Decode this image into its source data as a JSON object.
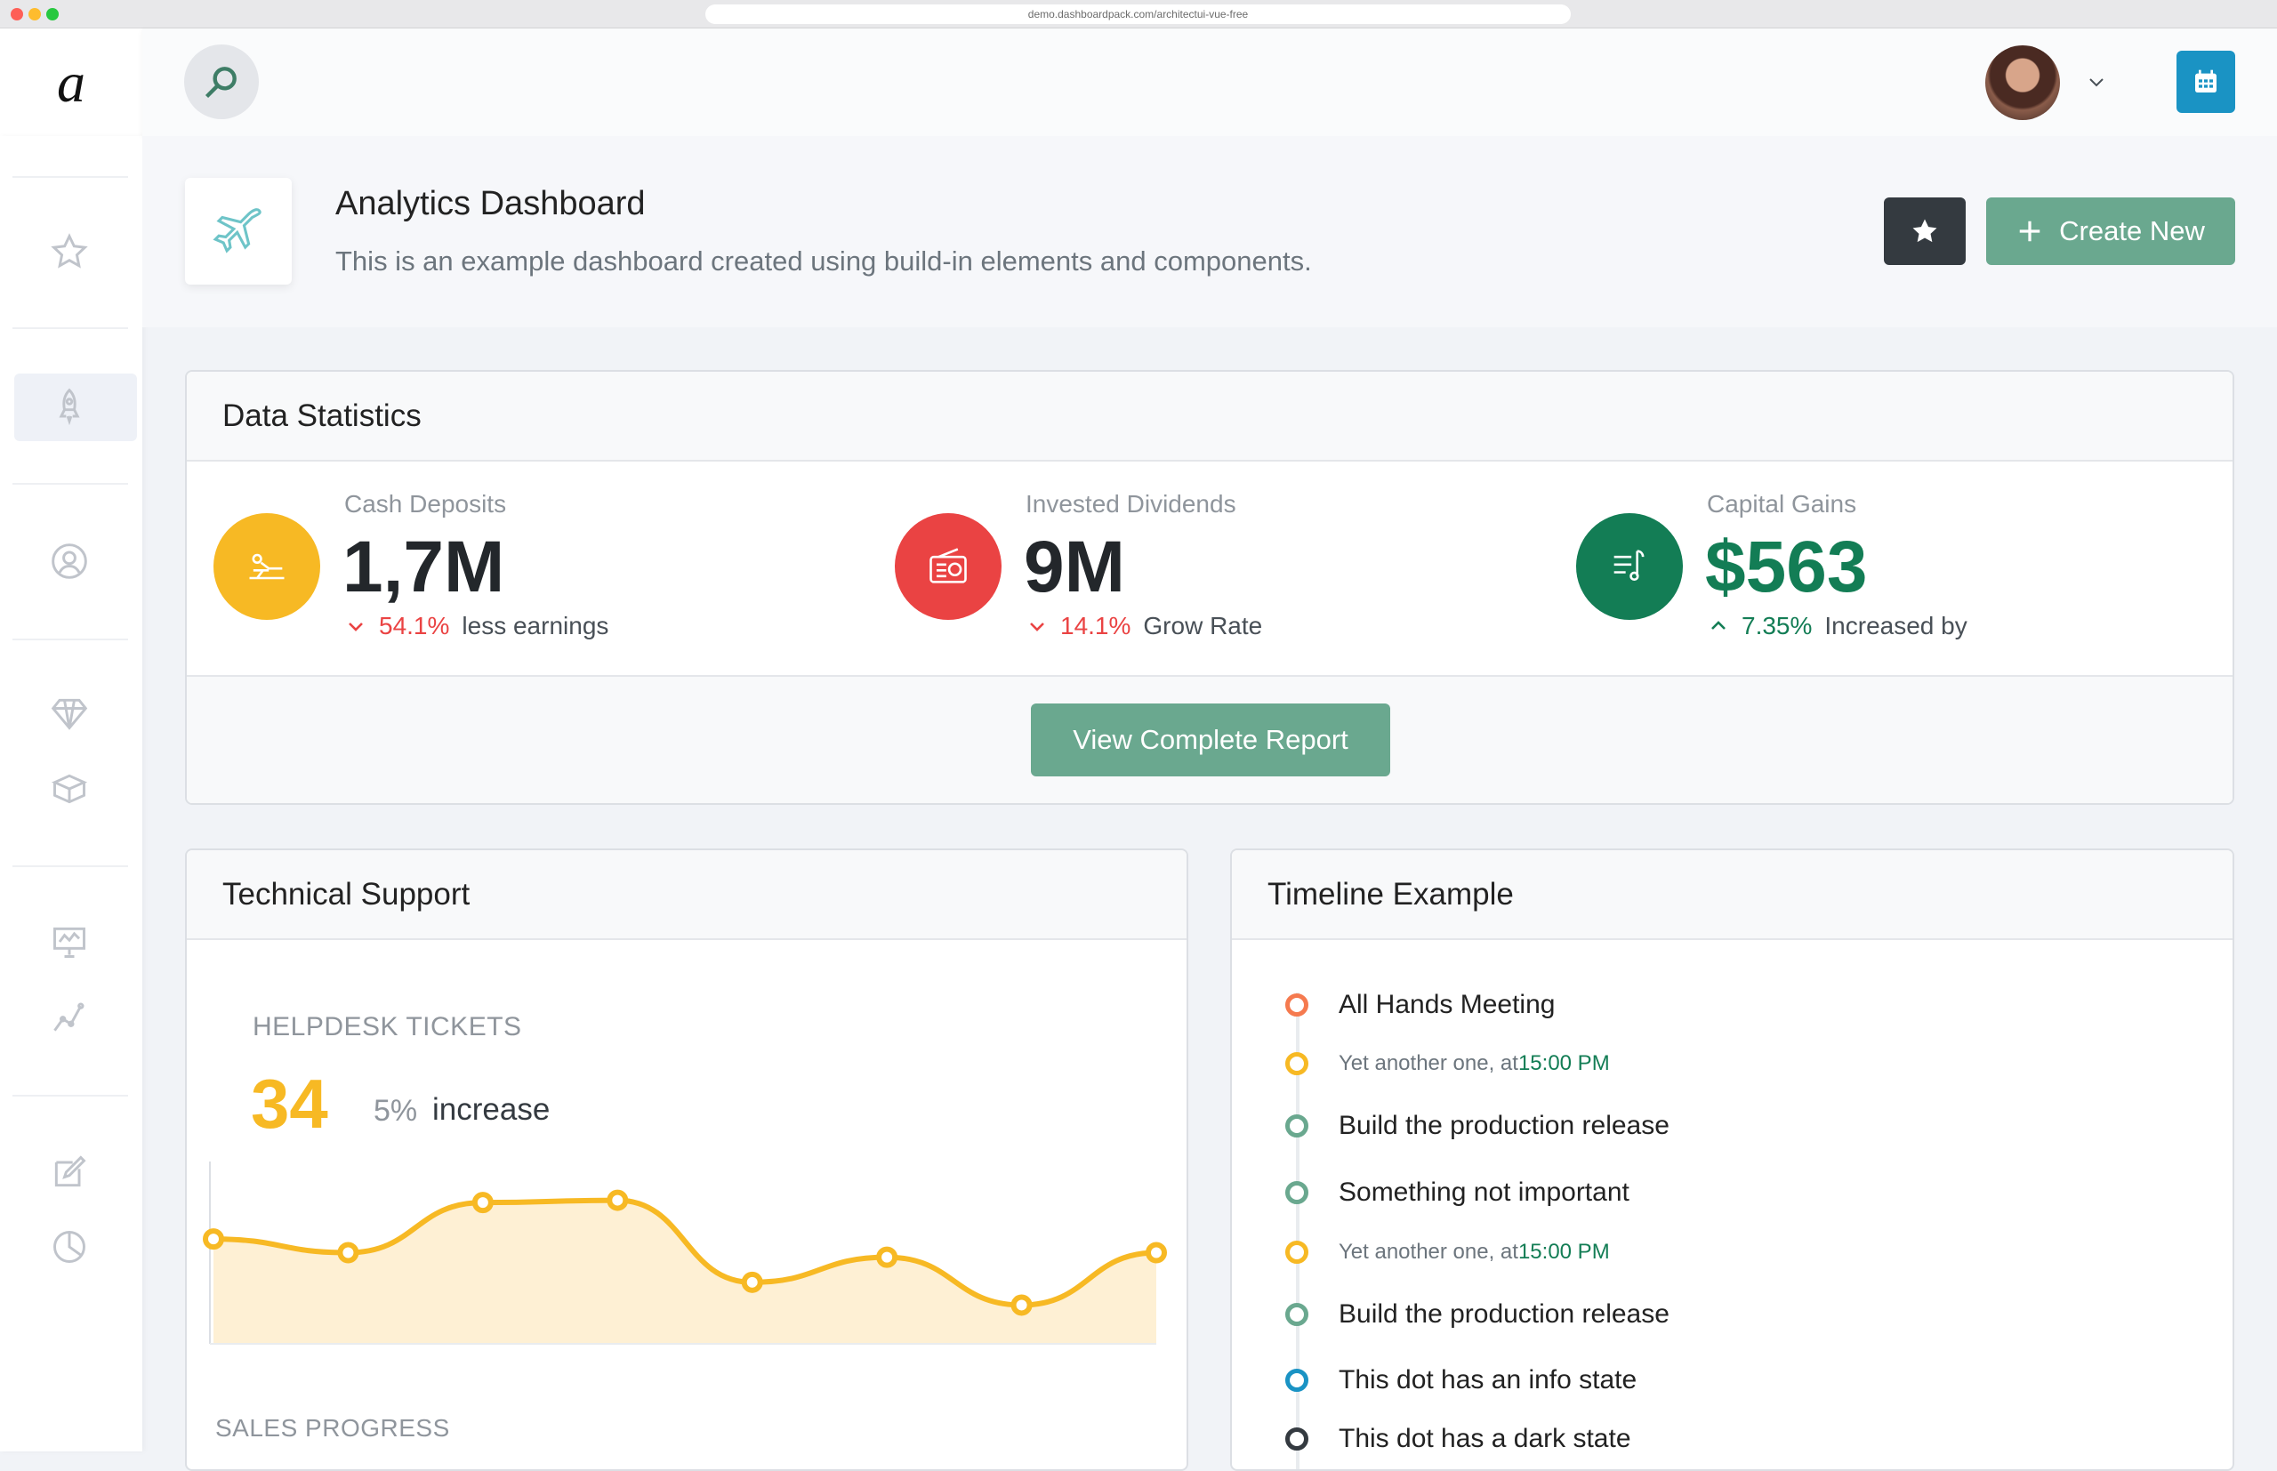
{
  "browser": {
    "url": "demo.dashboardpack.com/architectui-vue-free"
  },
  "app": {
    "logo": "a"
  },
  "page": {
    "title": "Analytics Dashboard",
    "subtitle": "This is an example dashboard created using build-in elements and components.",
    "create_label": "Create New"
  },
  "stats_card": {
    "title": "Data Statistics",
    "stats": [
      {
        "label": "Cash Deposits",
        "value": "1,7M",
        "pct": "54.1%",
        "desc": "less earnings",
        "trend": "down",
        "color": "#f7b924"
      },
      {
        "label": "Invested Dividends",
        "value": "9M",
        "pct": "14.1%",
        "desc": "Grow Rate",
        "trend": "down",
        "color": "#ea4343"
      },
      {
        "label": "Capital Gains",
        "value": "$563",
        "pct": "7.35%",
        "desc": "Increased by",
        "trend": "up",
        "color": "#137d55"
      }
    ],
    "report_button": "View Complete Report"
  },
  "support_card": {
    "title": "Technical Support",
    "helpdesk_label": "HELPDESK TICKETS",
    "tickets": "34",
    "increase_pct": "5%",
    "increase_label": "increase",
    "sales_label": "SALES PROGRESS"
  },
  "chart_data": {
    "type": "area",
    "x": [
      1,
      2,
      3,
      4,
      5,
      6,
      7,
      8
    ],
    "values": [
      46,
      40,
      62,
      63,
      27,
      38,
      17,
      40
    ],
    "series": [
      {
        "values": [
          46,
          40,
          62,
          63,
          27,
          38,
          17,
          40
        ]
      }
    ],
    "ylim": [
      0,
      80
    ],
    "grid": false,
    "color": "#f7b924"
  },
  "timeline_card": {
    "title": "Timeline Example",
    "items": [
      {
        "text": "All Hands Meeting",
        "small": false,
        "color": "#f57a4f"
      },
      {
        "text": "Yet another one, at ",
        "time": "15:00 PM",
        "small": true,
        "color": "#f7b924"
      },
      {
        "text": "Build the production release",
        "small": false,
        "color": "#6aa88f"
      },
      {
        "text": "Something not important",
        "small": false,
        "color": "#6aa88f"
      },
      {
        "text": "Yet another one, at ",
        "time": "15:00 PM",
        "small": true,
        "color": "#f7b924"
      },
      {
        "text": "Build the production release",
        "small": false,
        "color": "#6aa88f"
      },
      {
        "text": "This dot has an info state",
        "small": false,
        "color": "#1a93c4"
      },
      {
        "text": "This dot has a dark state",
        "small": false,
        "color": "#343a40"
      }
    ]
  },
  "colors": {
    "accent": "#6aa88f",
    "dark": "#343a40",
    "info": "#1a93c4",
    "warning": "#f7b924",
    "danger": "#ea4343",
    "success": "#137d55"
  },
  "icons": [
    "search-icon",
    "star-icon",
    "rocket-icon",
    "user-icon",
    "diamond-icon",
    "box-icon",
    "presentation-icon",
    "line-chart-icon",
    "edit-icon",
    "pie-chart-icon",
    "calendar-icon",
    "plane-icon",
    "plus-icon",
    "chevron-down-icon"
  ]
}
